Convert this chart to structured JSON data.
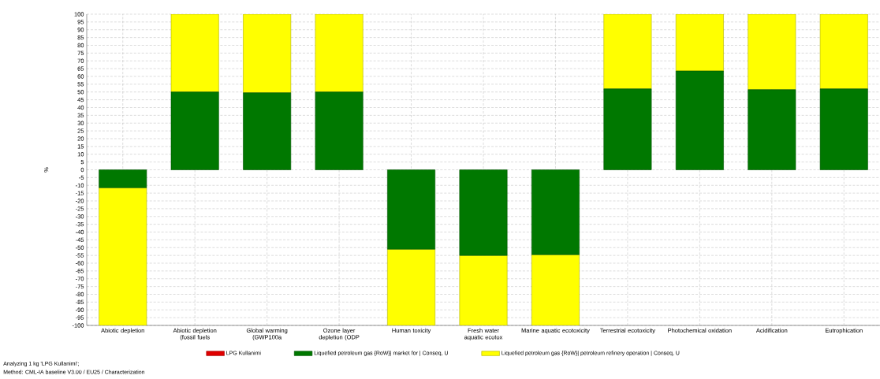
{
  "chart_data": {
    "type": "bar",
    "stacked": true,
    "ylabel": "%",
    "categories": [
      "Abiotic depletion",
      "Abiotic depletion (fossil fuels",
      "Global warming (GWP100a",
      "Ozone layer depletion (ODP",
      "Human toxicity",
      "Fresh water aquatic ecotox",
      "Marine aquatic ecotoxicity",
      "Terrestrial ecotoxicity",
      "Photochemical oxidation",
      "Acidification",
      "Eutrophication"
    ],
    "series": [
      {
        "name": "LPG Kullanimi",
        "color": "#e00000",
        "values": [
          0,
          0,
          0,
          0,
          0,
          0,
          0,
          0,
          0,
          0,
          0
        ]
      },
      {
        "name": "Liquefied petroleum gas {RoW}| market for | Conseq, U",
        "color": "#007800",
        "values": [
          -11.5,
          50,
          49.5,
          50,
          -51,
          -55,
          -54.5,
          52,
          63.5,
          51.5,
          52
        ]
      },
      {
        "name": "Liquefied petroleum gas {RoW}| petroleum refinery operation | Conseq, U",
        "color": "#ffff00",
        "values": [
          -88.5,
          50,
          50.5,
          50,
          -49,
          -45,
          -45.5,
          48,
          36.5,
          48.5,
          48
        ]
      }
    ],
    "ylim": [
      -100,
      100
    ],
    "yticks": [
      -100,
      -95,
      -90,
      -85,
      -80,
      -75,
      -70,
      -65,
      -60,
      -55,
      -50,
      -45,
      -40,
      -35,
      -30,
      -25,
      -20,
      -15,
      -10,
      -5,
      0,
      5,
      10,
      15,
      20,
      25,
      30,
      35,
      40,
      45,
      50,
      55,
      60,
      65,
      70,
      75,
      80,
      85,
      90,
      95,
      100
    ],
    "grid": true,
    "legend": "bottom",
    "annotations": [
      "Analyzing 1 kg 'LPG Kullanimi';",
      "Method: CML-IA baseline V3.00 / EU25 / Characterization"
    ]
  }
}
